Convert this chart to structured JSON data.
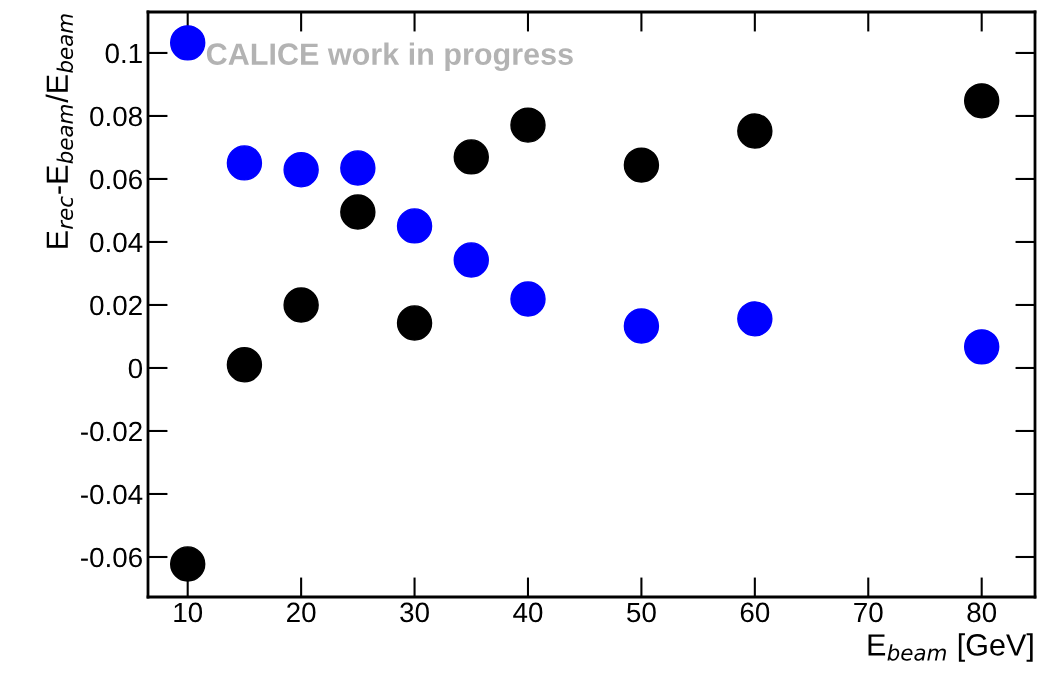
{
  "chart_data": {
    "type": "scatter",
    "xlabel": "E$_{beam}$ [GeV]",
    "ylabel": "E$_{rec}$-E$_{beam}$/E$_{beam}$",
    "annotations": [
      "CALICE work in progress"
    ],
    "x": [
      10,
      15,
      20,
      25,
      30,
      35,
      40,
      50,
      60,
      80
    ],
    "series": [
      {
        "color": "#0000ff",
        "values": [
          0.1032,
          0.0651,
          0.0629,
          0.0635,
          0.0451,
          0.0343,
          0.0219,
          0.0133,
          0.0156,
          0.0067
        ]
      },
      {
        "color": "#000000",
        "values": [
          -0.0622,
          0.001,
          0.02,
          0.0495,
          0.0143,
          0.067,
          0.0771,
          0.0644,
          0.0752,
          0.0848
        ]
      }
    ],
    "marker": "circle",
    "xlim": [
      6.5,
      84.7
    ],
    "ylim": [
      -0.0727,
      0.113
    ],
    "xticks": [
      10,
      20,
      30,
      40,
      50,
      60,
      70,
      80
    ],
    "yticks": [
      -0.06,
      -0.04,
      -0.02,
      0,
      0.02,
      0.04,
      0.06,
      0.08,
      0.1
    ],
    "grid": false,
    "legend": false
  }
}
